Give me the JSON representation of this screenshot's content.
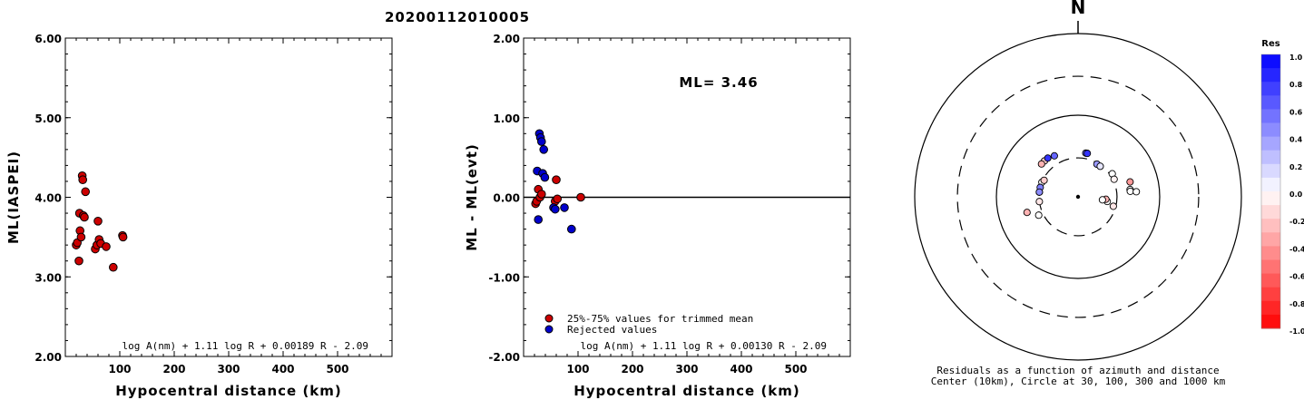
{
  "title": "20200112010005",
  "colors": {
    "red": "#cc0000",
    "blue": "#0000cc",
    "axis": "#000000"
  },
  "chart_data": [
    {
      "type": "scatter",
      "name": "ml-vs-distance",
      "xlabel": "Hypocentral distance (km)",
      "ylabel": "ML(IASPEI)",
      "xlim": [
        0,
        600
      ],
      "ylim": [
        2.0,
        6.0
      ],
      "xticks": [
        "100",
        "200",
        "300",
        "400",
        "500"
      ],
      "xtick_values": [
        100,
        200,
        300,
        400,
        500
      ],
      "yticks": [
        "2.00",
        "3.00",
        "4.00",
        "5.00",
        "6.00"
      ],
      "ytick_values": [
        2.0,
        3.0,
        4.0,
        5.0,
        6.0
      ],
      "formula": "log A(nm) + 1.11 log R + 0.00189 R - 2.09",
      "points": [
        {
          "x": 20,
          "y": 3.4
        },
        {
          "x": 22,
          "y": 3.43
        },
        {
          "x": 25,
          "y": 3.2
        },
        {
          "x": 26,
          "y": 3.8
        },
        {
          "x": 27,
          "y": 3.58
        },
        {
          "x": 29,
          "y": 3.5
        },
        {
          "x": 31,
          "y": 4.27
        },
        {
          "x": 32,
          "y": 4.22
        },
        {
          "x": 33,
          "y": 3.77
        },
        {
          "x": 35,
          "y": 3.75
        },
        {
          "x": 37,
          "y": 4.07
        },
        {
          "x": 55,
          "y": 3.35
        },
        {
          "x": 58,
          "y": 3.4
        },
        {
          "x": 60,
          "y": 3.7
        },
        {
          "x": 62,
          "y": 3.47
        },
        {
          "x": 65,
          "y": 3.42
        },
        {
          "x": 75,
          "y": 3.38
        },
        {
          "x": 88,
          "y": 3.12
        },
        {
          "x": 105,
          "y": 3.52
        },
        {
          "x": 106,
          "y": 3.5
        }
      ]
    },
    {
      "type": "scatter",
      "name": "residual-vs-distance",
      "xlabel": "Hypocentral distance (km)",
      "ylabel": "ML - ML(evt)",
      "xlim": [
        0,
        600
      ],
      "ylim": [
        -2.0,
        2.0
      ],
      "xticks": [
        "100",
        "200",
        "300",
        "400",
        "500"
      ],
      "xtick_values": [
        100,
        200,
        300,
        400,
        500
      ],
      "yticks": [
        "-2.00",
        "-1.00",
        "0.00",
        "1.00",
        "2.00"
      ],
      "ytick_values": [
        -2.0,
        -1.0,
        0.0,
        1.0,
        2.0
      ],
      "ml_text": "ML= 3.46",
      "formula": "log A(nm) + 1.11 log R + 0.00130 R - 2.09",
      "legend": [
        {
          "label": "25%-75% values for trimmed mean",
          "color": "#cc0000"
        },
        {
          "label": "Rejected values",
          "color": "#0000cc"
        }
      ],
      "series": [
        {
          "color": "#cc0000",
          "points": [
            {
              "x": 22,
              "y": -0.08
            },
            {
              "x": 24,
              "y": -0.05
            },
            {
              "x": 27,
              "y": 0.1
            },
            {
              "x": 30,
              "y": 0.0
            },
            {
              "x": 33,
              "y": 0.04
            },
            {
              "x": 58,
              "y": -0.05
            },
            {
              "x": 60,
              "y": 0.22
            },
            {
              "x": 62,
              "y": -0.02
            },
            {
              "x": 105,
              "y": 0.0
            }
          ]
        },
        {
          "color": "#0000cc",
          "points": [
            {
              "x": 25,
              "y": 0.33
            },
            {
              "x": 27,
              "y": -0.28
            },
            {
              "x": 29,
              "y": 0.8
            },
            {
              "x": 31,
              "y": 0.75
            },
            {
              "x": 33,
              "y": 0.7
            },
            {
              "x": 35,
              "y": 0.3
            },
            {
              "x": 37,
              "y": 0.6
            },
            {
              "x": 39,
              "y": 0.25
            },
            {
              "x": 55,
              "y": -0.13
            },
            {
              "x": 58,
              "y": -0.15
            },
            {
              "x": 75,
              "y": -0.13
            },
            {
              "x": 88,
              "y": -0.4
            }
          ]
        }
      ]
    },
    {
      "type": "scatter",
      "name": "azimuth-distance-residuals",
      "north_label": "N",
      "caption_line1": "Residuals as a function of azimuth and distance",
      "caption_line2": "Center (10km), Circle at 30, 100, 300 and 1000 km",
      "colorbar_title": "Res",
      "colorbar_ticks": [
        "1.0",
        "0.8",
        "0.6",
        "0.4",
        "0.2",
        "0.0",
        "-0.2",
        "-0.4",
        "-0.6",
        "-0.8",
        "-1.0"
      ],
      "colorbar_tick_values": [
        1.0,
        0.8,
        0.6,
        0.4,
        0.2,
        0.0,
        -0.2,
        -0.4,
        -0.6,
        -0.8,
        -1.0
      ],
      "stations": [
        {
          "dist": 30,
          "az": 292,
          "res": 0.0
        },
        {
          "dist": 30,
          "az": 277,
          "res": -0.1
        },
        {
          "dist": 30,
          "az": 263,
          "res": -0.1
        },
        {
          "dist": 30,
          "az": 284,
          "res": 0.5
        },
        {
          "dist": 30,
          "az": 277,
          "res": 0.45
        },
        {
          "dist": 45,
          "az": 253,
          "res": -0.3
        },
        {
          "dist": 34,
          "az": 245,
          "res": 0.0
        },
        {
          "dist": 29,
          "az": 296,
          "res": -0.2
        },
        {
          "dist": 40,
          "az": 317,
          "res": -0.2
        },
        {
          "dist": 40,
          "az": 312,
          "res": -0.3
        },
        {
          "dist": 38,
          "az": 330,
          "res": 0.6
        },
        {
          "dist": 40,
          "az": 322,
          "res": 0.8
        },
        {
          "dist": 35,
          "az": 10,
          "res": 0.55
        },
        {
          "dist": 35,
          "az": 12,
          "res": 0.8
        },
        {
          "dist": 29,
          "az": 30,
          "res": 0.4
        },
        {
          "dist": 29,
          "az": 36,
          "res": 0.1
        },
        {
          "dist": 32,
          "az": 56,
          "res": 0.0
        },
        {
          "dist": 31,
          "az": 64,
          "res": -0.05
        },
        {
          "dist": 46,
          "az": 74,
          "res": -0.4
        },
        {
          "dist": 44,
          "az": 82,
          "res": 0.0
        },
        {
          "dist": 44,
          "az": 84,
          "res": 0.0
        },
        {
          "dist": 52,
          "az": 85,
          "res": 0.0
        },
        {
          "dist": 28,
          "az": 105,
          "res": -0.1
        },
        {
          "dist": 23,
          "az": 99,
          "res": 0.0
        },
        {
          "dist": 22,
          "az": 95,
          "res": -0.3
        },
        {
          "dist": 20,
          "az": 97,
          "res": 0.0
        }
      ]
    }
  ]
}
